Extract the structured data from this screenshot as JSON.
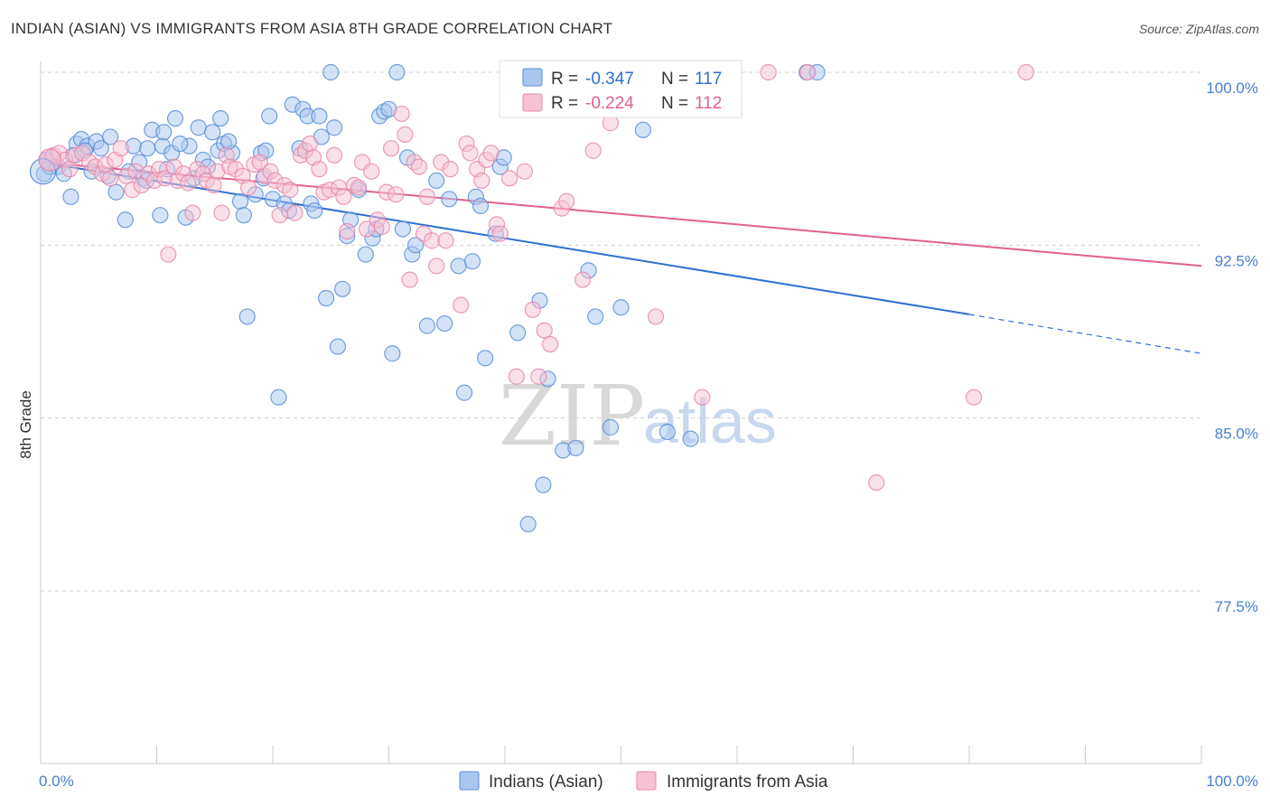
{
  "title": "INDIAN (ASIAN) VS IMMIGRANTS FROM ASIA 8TH GRADE CORRELATION CHART",
  "source": "Source: ZipAtlas.com",
  "watermark": {
    "zip": "ZIP",
    "atlas": "atlas"
  },
  "colors": {
    "blue_fill": "#a9c6ef",
    "blue_stroke": "#5b8fd8",
    "blue_line": "#2f6fd0",
    "pink_fill": "#f6c2d4",
    "pink_stroke": "#e88aab",
    "pink_line": "#e06090",
    "grid": "#d0d0d0",
    "tick_text": "#4a7fd0"
  },
  "legend": {
    "r_label": "R =",
    "n_label": "N =",
    "series": [
      {
        "r": "-0.347",
        "n": "117"
      },
      {
        "r": "-0.224",
        "n": "112"
      }
    ]
  },
  "chart_data": {
    "type": "scatter",
    "title": "INDIAN (ASIAN) VS IMMIGRANTS FROM ASIA 8TH GRADE CORRELATION CHART",
    "xlabel": "",
    "ylabel": "8th Grade",
    "xlim": [
      0,
      100
    ],
    "ylim": [
      70,
      100.8
    ],
    "x_tick_labels": [
      "0.0%",
      "100.0%"
    ],
    "y_ticks": [
      77.5,
      85.0,
      92.5,
      100.0
    ],
    "y_tick_labels": [
      "77.5%",
      "85.0%",
      "92.5%",
      "100.0%"
    ],
    "grid": "horizontal dashed",
    "legend_position": "top-center",
    "series": [
      {
        "name": "Indians (Asian)",
        "r": -0.347,
        "n": 117,
        "trend": {
          "x0": 0,
          "y0": 96.1,
          "x1": 80,
          "y1": 89.5,
          "dash_to_x": 100,
          "dash_to_y": 87.8
        },
        "points": [
          [
            0.3,
            95.6
          ],
          [
            0.5,
            96.2
          ],
          [
            0.8,
            95.9
          ],
          [
            1.0,
            96.3
          ],
          [
            1.5,
            95.9
          ],
          [
            2.0,
            95.6
          ],
          [
            2.6,
            94.6
          ],
          [
            3.1,
            96.9
          ],
          [
            3.5,
            97.1
          ],
          [
            4.0,
            96.8
          ],
          [
            4.4,
            95.7
          ],
          [
            4.8,
            97.0
          ],
          [
            5.2,
            96.7
          ],
          [
            5.8,
            95.5
          ],
          [
            6.0,
            97.2
          ],
          [
            6.5,
            94.8
          ],
          [
            7.3,
            93.6
          ],
          [
            7.6,
            95.7
          ],
          [
            8.0,
            96.8
          ],
          [
            8.5,
            96.1
          ],
          [
            8.9,
            95.4
          ],
          [
            9.2,
            96.7
          ],
          [
            9.6,
            97.5
          ],
          [
            10.3,
            93.8
          ],
          [
            10.5,
            96.8
          ],
          [
            10.6,
            97.4
          ],
          [
            10.9,
            95.8
          ],
          [
            11.3,
            96.5
          ],
          [
            11.6,
            98.0
          ],
          [
            12.5,
            93.7
          ],
          [
            12.8,
            96.8
          ],
          [
            13.2,
            95.4
          ],
          [
            13.6,
            97.6
          ],
          [
            14.0,
            96.2
          ],
          [
            14.4,
            95.9
          ],
          [
            14.8,
            97.4
          ],
          [
            15.3,
            96.6
          ],
          [
            15.5,
            98.0
          ],
          [
            15.8,
            96.9
          ],
          [
            16.5,
            96.5
          ],
          [
            17.2,
            94.4
          ],
          [
            17.5,
            93.8
          ],
          [
            17.8,
            89.4
          ],
          [
            18.5,
            94.7
          ],
          [
            19.0,
            96.5
          ],
          [
            19.4,
            96.6
          ],
          [
            19.2,
            95.4
          ],
          [
            19.7,
            98.1
          ],
          [
            20.0,
            94.5
          ],
          [
            20.5,
            85.9
          ],
          [
            21.0,
            94.3
          ],
          [
            21.4,
            94.0
          ],
          [
            21.7,
            98.6
          ],
          [
            22.3,
            96.7
          ],
          [
            22.6,
            98.4
          ],
          [
            23.0,
            98.1
          ],
          [
            23.3,
            94.3
          ],
          [
            23.6,
            94.0
          ],
          [
            24.0,
            98.1
          ],
          [
            24.2,
            97.2
          ],
          [
            24.6,
            90.2
          ],
          [
            25.0,
            100.0
          ],
          [
            25.3,
            97.6
          ],
          [
            25.6,
            88.1
          ],
          [
            26.0,
            90.6
          ],
          [
            26.4,
            92.9
          ],
          [
            26.7,
            93.6
          ],
          [
            27.4,
            94.9
          ],
          [
            28.0,
            92.1
          ],
          [
            28.6,
            92.8
          ],
          [
            28.9,
            93.2
          ],
          [
            29.2,
            98.1
          ],
          [
            29.6,
            98.3
          ],
          [
            30.0,
            98.4
          ],
          [
            30.3,
            87.8
          ],
          [
            30.7,
            100.0
          ],
          [
            31.2,
            93.2
          ],
          [
            31.6,
            96.3
          ],
          [
            32.0,
            92.1
          ],
          [
            32.3,
            92.5
          ],
          [
            33.3,
            89.0
          ],
          [
            34.1,
            95.3
          ],
          [
            34.8,
            89.1
          ],
          [
            35.2,
            94.5
          ],
          [
            36.0,
            91.6
          ],
          [
            36.5,
            86.1
          ],
          [
            37.2,
            91.8
          ],
          [
            37.5,
            94.6
          ],
          [
            37.9,
            94.2
          ],
          [
            38.3,
            87.6
          ],
          [
            39.2,
            93.0
          ],
          [
            39.6,
            95.9
          ],
          [
            39.9,
            96.3
          ],
          [
            41.1,
            88.7
          ],
          [
            42.0,
            80.4
          ],
          [
            43.0,
            90.1
          ],
          [
            43.3,
            82.1
          ],
          [
            43.7,
            86.7
          ],
          [
            45.0,
            83.6
          ],
          [
            46.1,
            83.7
          ],
          [
            47.2,
            91.4
          ],
          [
            47.8,
            89.4
          ],
          [
            48.6,
            100.0
          ],
          [
            49.1,
            84.6
          ],
          [
            50.0,
            89.8
          ],
          [
            51.9,
            97.5
          ],
          [
            54.0,
            84.4
          ],
          [
            56.0,
            84.1
          ],
          [
            59.3,
            100.0
          ],
          [
            66.0,
            100.0
          ],
          [
            66.9,
            100.0
          ],
          [
            50.6,
            100.0
          ],
          [
            16.2,
            97.0
          ],
          [
            12.0,
            96.9
          ],
          [
            2.8,
            96.4
          ],
          [
            3.8,
            96.6
          ],
          [
            9.1,
            95.3
          ]
        ]
      },
      {
        "name": "Immigrants from Asia",
        "r": -0.224,
        "n": 112,
        "trend": {
          "x0": 0,
          "y0": 96.1,
          "x1": 100,
          "y1": 91.6
        },
        "points": [
          [
            0.6,
            96.1
          ],
          [
            1.1,
            96.4
          ],
          [
            1.6,
            96.5
          ],
          [
            2.1,
            96.2
          ],
          [
            2.5,
            95.8
          ],
          [
            3.0,
            96.4
          ],
          [
            3.6,
            96.5
          ],
          [
            4.2,
            96.1
          ],
          [
            4.7,
            95.9
          ],
          [
            5.3,
            95.6
          ],
          [
            5.6,
            96.0
          ],
          [
            6.0,
            95.4
          ],
          [
            6.4,
            96.2
          ],
          [
            6.9,
            96.7
          ],
          [
            7.4,
            95.5
          ],
          [
            7.9,
            94.9
          ],
          [
            8.2,
            95.7
          ],
          [
            8.7,
            95.1
          ],
          [
            9.3,
            95.6
          ],
          [
            9.8,
            95.3
          ],
          [
            10.2,
            95.8
          ],
          [
            10.7,
            95.4
          ],
          [
            11.0,
            92.1
          ],
          [
            11.5,
            95.9
          ],
          [
            11.8,
            95.3
          ],
          [
            12.3,
            95.6
          ],
          [
            12.7,
            95.2
          ],
          [
            13.1,
            93.9
          ],
          [
            13.5,
            95.8
          ],
          [
            14.0,
            95.6
          ],
          [
            14.3,
            95.3
          ],
          [
            14.9,
            95.1
          ],
          [
            15.2,
            95.7
          ],
          [
            15.6,
            93.9
          ],
          [
            16.0,
            96.4
          ],
          [
            16.3,
            95.9
          ],
          [
            16.8,
            95.8
          ],
          [
            17.4,
            95.5
          ],
          [
            17.9,
            95.0
          ],
          [
            18.4,
            96.0
          ],
          [
            18.9,
            96.1
          ],
          [
            19.3,
            95.5
          ],
          [
            19.8,
            95.7
          ],
          [
            20.2,
            95.3
          ],
          [
            20.6,
            93.8
          ],
          [
            21.0,
            95.1
          ],
          [
            21.5,
            94.9
          ],
          [
            21.9,
            93.9
          ],
          [
            22.4,
            96.4
          ],
          [
            22.8,
            96.6
          ],
          [
            23.2,
            96.9
          ],
          [
            23.5,
            96.3
          ],
          [
            24.0,
            95.8
          ],
          [
            24.4,
            94.8
          ],
          [
            24.9,
            94.9
          ],
          [
            25.3,
            96.4
          ],
          [
            25.7,
            95.0
          ],
          [
            26.1,
            94.6
          ],
          [
            26.4,
            93.1
          ],
          [
            27.0,
            95.1
          ],
          [
            27.4,
            95.0
          ],
          [
            27.7,
            96.1
          ],
          [
            28.1,
            93.2
          ],
          [
            28.5,
            95.7
          ],
          [
            29.0,
            93.6
          ],
          [
            29.4,
            93.3
          ],
          [
            29.8,
            94.8
          ],
          [
            30.2,
            96.7
          ],
          [
            30.6,
            94.7
          ],
          [
            31.1,
            98.2
          ],
          [
            31.4,
            97.3
          ],
          [
            31.8,
            91.0
          ],
          [
            32.2,
            96.1
          ],
          [
            32.6,
            95.9
          ],
          [
            33.0,
            93.0
          ],
          [
            33.3,
            94.6
          ],
          [
            33.7,
            92.7
          ],
          [
            34.1,
            91.6
          ],
          [
            34.5,
            96.1
          ],
          [
            34.9,
            92.7
          ],
          [
            35.3,
            95.8
          ],
          [
            36.2,
            89.9
          ],
          [
            36.7,
            96.9
          ],
          [
            37.0,
            96.5
          ],
          [
            37.6,
            95.8
          ],
          [
            38.0,
            95.3
          ],
          [
            38.4,
            96.2
          ],
          [
            38.8,
            96.5
          ],
          [
            39.3,
            93.4
          ],
          [
            39.6,
            93.0
          ],
          [
            40.4,
            95.4
          ],
          [
            41.0,
            86.8
          ],
          [
            41.7,
            95.7
          ],
          [
            42.4,
            89.7
          ],
          [
            42.9,
            86.8
          ],
          [
            43.4,
            88.8
          ],
          [
            43.9,
            88.2
          ],
          [
            44.9,
            94.1
          ],
          [
            45.3,
            94.4
          ],
          [
            45.9,
            100.0
          ],
          [
            46.7,
            91.0
          ],
          [
            47.6,
            96.6
          ],
          [
            49.1,
            97.8
          ],
          [
            52.6,
            100.0
          ],
          [
            53.0,
            89.4
          ],
          [
            57.0,
            85.9
          ],
          [
            62.7,
            100.0
          ],
          [
            66.1,
            100.0
          ],
          [
            72.0,
            82.2
          ],
          [
            80.4,
            85.9
          ],
          [
            84.9,
            100.0
          ],
          [
            52.2,
            100.0
          ]
        ]
      }
    ]
  }
}
